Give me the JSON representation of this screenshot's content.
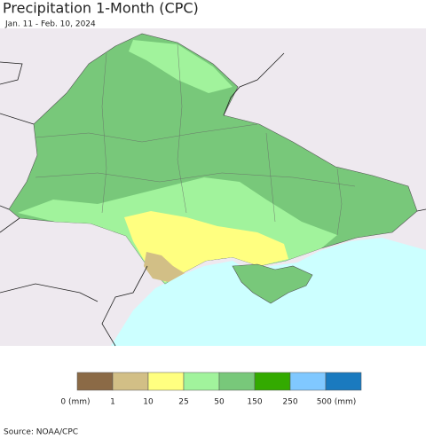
{
  "header": {
    "title": "Precipitation 1-Month (CPC)",
    "subtitle": "Jan. 11 - Feb. 10, 2024"
  },
  "legend": {
    "items": [
      {
        "label": "0 (mm)",
        "color": "#8b6a46"
      },
      {
        "label": "1",
        "color": "#d2bf86"
      },
      {
        "label": "10",
        "color": "#ffff80"
      },
      {
        "label": "25",
        "color": "#a1f39c"
      },
      {
        "label": "50",
        "color": "#78c87a"
      },
      {
        "label": "150",
        "color": "#33aa00"
      },
      {
        "label": "250",
        "color": "#80c8ff"
      },
      {
        "label": "500 (mm)",
        "color": "#1a7abf"
      }
    ]
  },
  "footer": {
    "source": "Source: NOAA/CPC"
  }
}
